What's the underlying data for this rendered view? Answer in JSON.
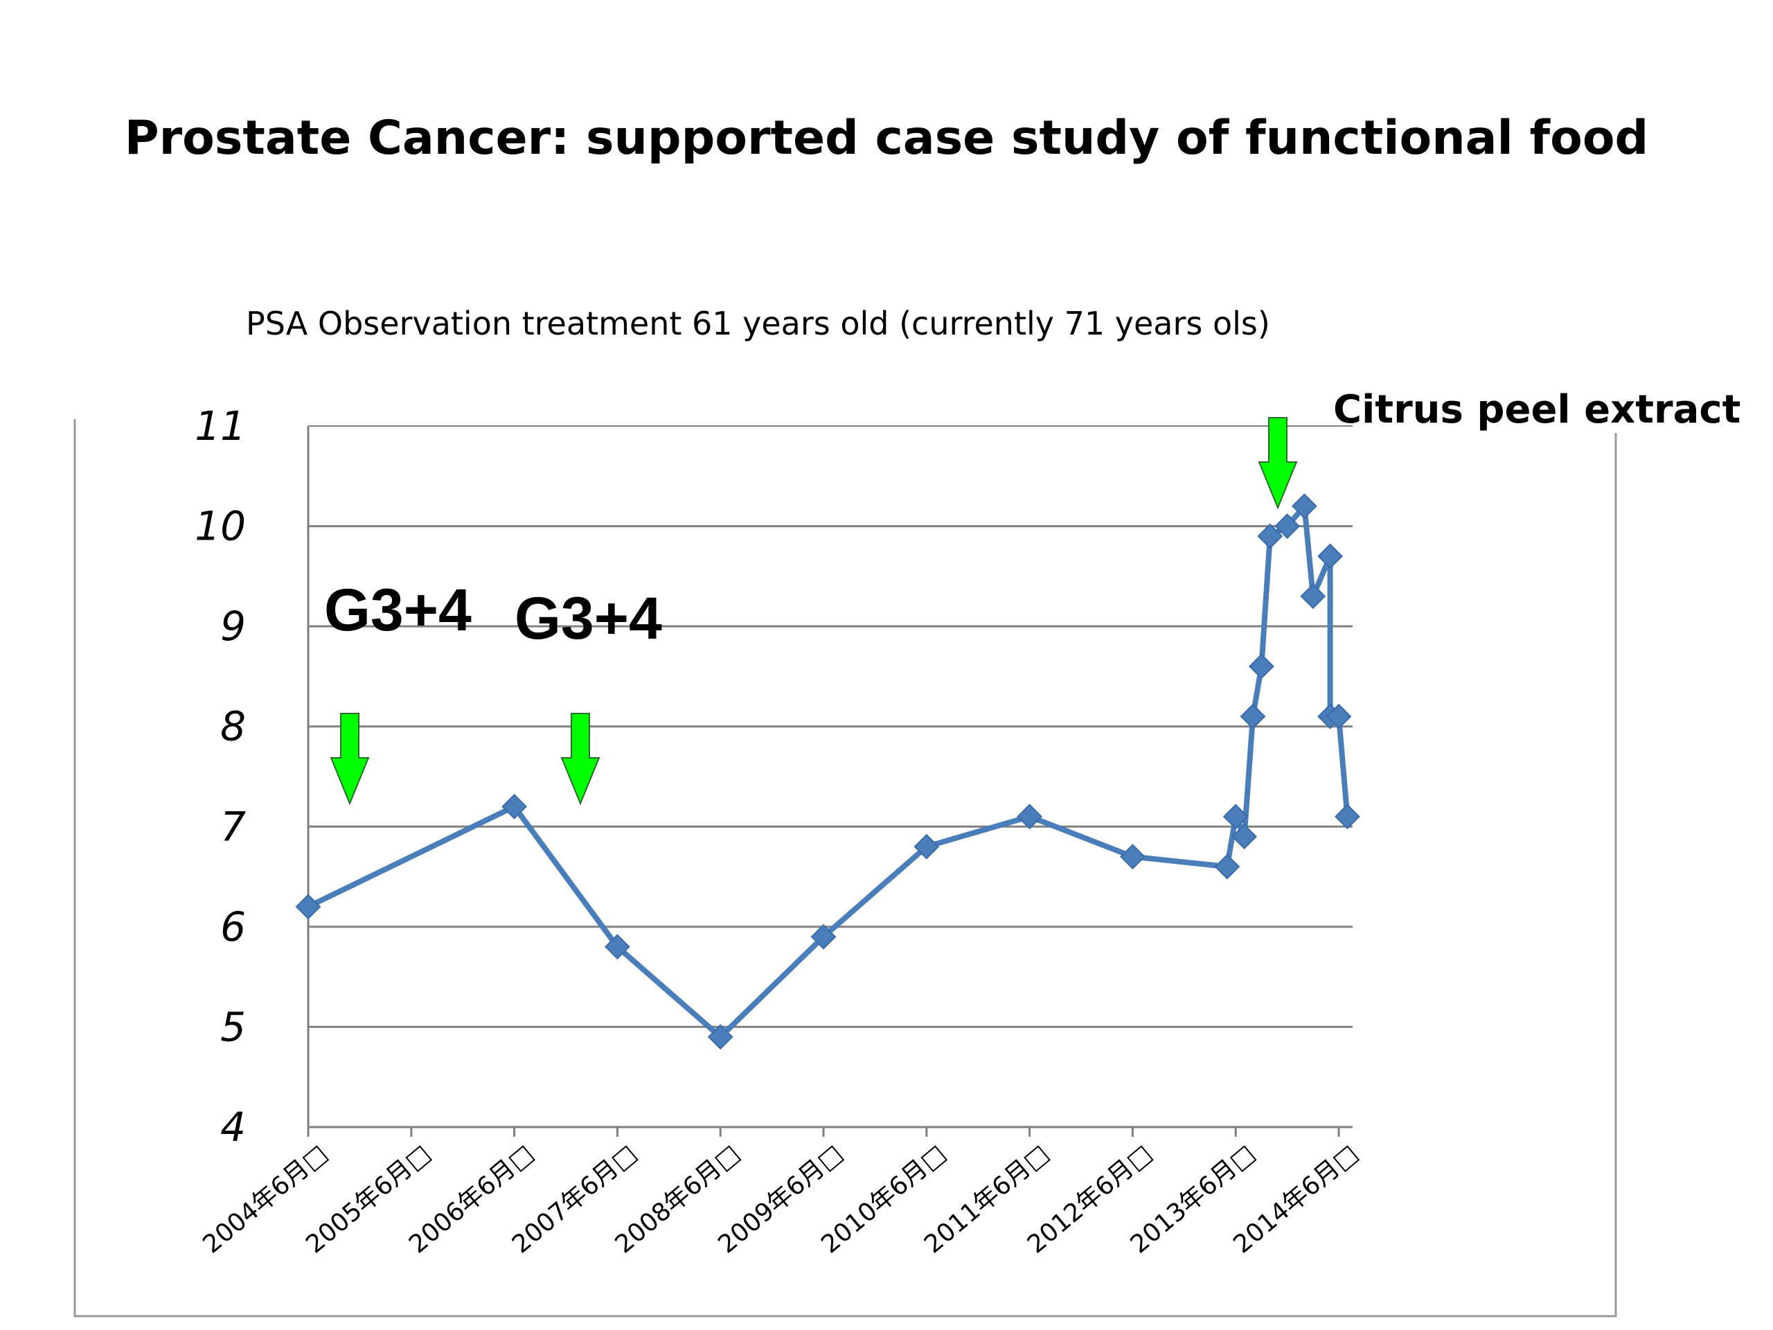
{
  "slide": {
    "title": "Prostate Cancer:  supported case study of functional food"
  },
  "chart_data": {
    "type": "line",
    "subtitle": "PSA Observation treatment  61 years old (currently 71 years ols)",
    "xlabel": "",
    "ylabel": "",
    "ylim": [
      4,
      11
    ],
    "yticks": [
      "4",
      "5",
      "6",
      "7",
      "8",
      "9",
      "10",
      "11"
    ],
    "x_tick_labels": [
      "2004年6月□",
      "2005年6月□",
      "2006年6月□",
      "2007年6月□",
      "2008年6月□",
      "2009年6月□",
      "2010年6月□",
      "2011年6月□",
      "2012年6月□",
      "2013年6月□",
      "2014年6月□"
    ],
    "x_range": [
      "2004-06",
      "2014-06"
    ],
    "grid": true,
    "series": [
      {
        "x": [
          "2004-06",
          "2006-06",
          "2007-06",
          "2008-06",
          "2009-06",
          "2010-06",
          "2011-06",
          "2012-06",
          "2013-05",
          "2013-06",
          "2013-07",
          "2013-08",
          "2013-09",
          "2013-10",
          "2013-12",
          "2014-02",
          "2014-03",
          "2014-05",
          "2014-05",
          "2014-06",
          "2014-07"
        ],
        "values": [
          6.2,
          7.2,
          5.8,
          4.9,
          5.9,
          6.8,
          7.1,
          6.7,
          6.6,
          7.1,
          6.9,
          8.1,
          8.6,
          9.9,
          10.0,
          10.2,
          9.3,
          9.7,
          8.1,
          8.1,
          7.1
        ]
      }
    ],
    "annotations": {
      "grade_label_1": "G3+4",
      "grade_label_2": "G3+4",
      "citrus_label": "Citrus peel extract"
    },
    "colors": {
      "line": "#4a7ebb",
      "marker": "#4a7ebb",
      "arrow_fill": "#00ff00",
      "arrow_stroke": "#2e6b2e",
      "gridline": "#808080"
    }
  }
}
